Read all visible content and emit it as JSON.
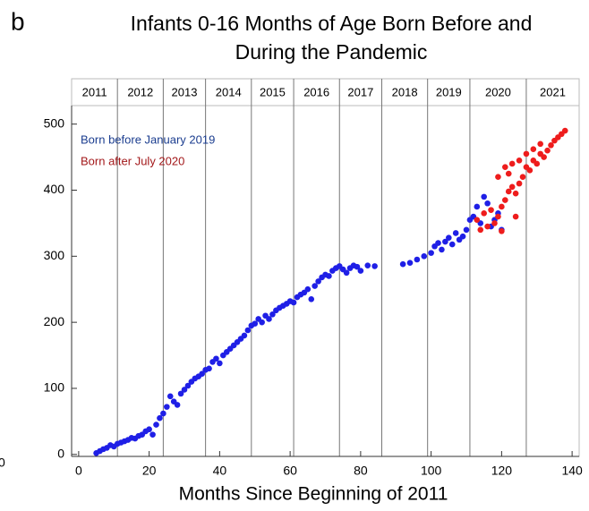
{
  "chart_data": {
    "type": "scatter",
    "panel_label": "b",
    "title": [
      "Infants 0-16 Months of Age Born Before and",
      "During the Pandemic"
    ],
    "xlabel": "Months Since Beginning of 2011",
    "stray_label": "0",
    "xlim": [
      -2,
      142
    ],
    "ylim": [
      -3,
      528
    ],
    "xticks": [
      0,
      20,
      40,
      60,
      80,
      100,
      120,
      140
    ],
    "yticks": [
      0,
      100,
      200,
      300,
      400,
      500
    ],
    "years": [
      "2011",
      "2012",
      "2013",
      "2014",
      "2015",
      "2016",
      "2017",
      "2018",
      "2019",
      "2020",
      "2021"
    ],
    "year_boundaries": [
      11,
      24,
      36,
      49,
      61,
      74,
      86,
      99,
      111,
      127
    ],
    "legend_position": "upper left",
    "series": [
      {
        "name": "Born before January 2019",
        "color": "#1f1fe6",
        "label_color": "#1b3d8f",
        "x": [
          5,
          6,
          7,
          8,
          9,
          10,
          11,
          12,
          13,
          14,
          15,
          16,
          17,
          18,
          19,
          20,
          21,
          22,
          23,
          24,
          25,
          26,
          27,
          28,
          29,
          30,
          31,
          32,
          33,
          34,
          35,
          36,
          37,
          38,
          39,
          40,
          41,
          42,
          43,
          44,
          45,
          46,
          47,
          48,
          49,
          50,
          51,
          52,
          53,
          54,
          55,
          56,
          57,
          58,
          59,
          60,
          61,
          62,
          63,
          64,
          65,
          66,
          67,
          68,
          69,
          70,
          71,
          72,
          73,
          74,
          75,
          76,
          77,
          78,
          79,
          80,
          82,
          84,
          92,
          94,
          96,
          98,
          100,
          101,
          102,
          103,
          104,
          105,
          106,
          107,
          108,
          109,
          110,
          111,
          112,
          113,
          114,
          115,
          116,
          117,
          118,
          119,
          120
        ],
        "values": [
          2,
          5,
          8,
          10,
          14,
          12,
          16,
          18,
          20,
          22,
          25,
          24,
          28,
          30,
          35,
          38,
          30,
          45,
          55,
          62,
          72,
          88,
          80,
          75,
          92,
          98,
          104,
          110,
          115,
          118,
          122,
          128,
          130,
          140,
          145,
          138,
          150,
          155,
          160,
          165,
          170,
          175,
          180,
          188,
          195,
          198,
          205,
          200,
          210,
          205,
          212,
          218,
          222,
          225,
          228,
          232,
          230,
          238,
          242,
          245,
          250,
          235,
          255,
          262,
          268,
          272,
          270,
          278,
          282,
          285,
          280,
          275,
          282,
          286,
          284,
          278,
          286,
          285,
          288,
          290,
          295,
          300,
          305,
          315,
          320,
          310,
          322,
          328,
          318,
          335,
          325,
          330,
          340,
          355,
          360,
          375,
          350,
          390,
          380,
          345,
          355,
          365,
          340
        ]
      },
      {
        "name": "Born after July 2020",
        "color": "#ee1c1c",
        "label_color": "#a3191b",
        "x": [
          113,
          114,
          115,
          116,
          117,
          118,
          119,
          120,
          121,
          122,
          123,
          124,
          125,
          126,
          127,
          128,
          129,
          130,
          131,
          132,
          133,
          134,
          135,
          136,
          137,
          138,
          119,
          121,
          123,
          125,
          127,
          129,
          131,
          122,
          124,
          120
        ],
        "values": [
          355,
          340,
          365,
          345,
          370,
          350,
          360,
          375,
          385,
          398,
          405,
          395,
          410,
          420,
          435,
          430,
          445,
          440,
          455,
          450,
          460,
          468,
          475,
          480,
          485,
          490,
          420,
          435,
          440,
          445,
          455,
          462,
          470,
          425,
          360,
          338
        ]
      }
    ]
  }
}
